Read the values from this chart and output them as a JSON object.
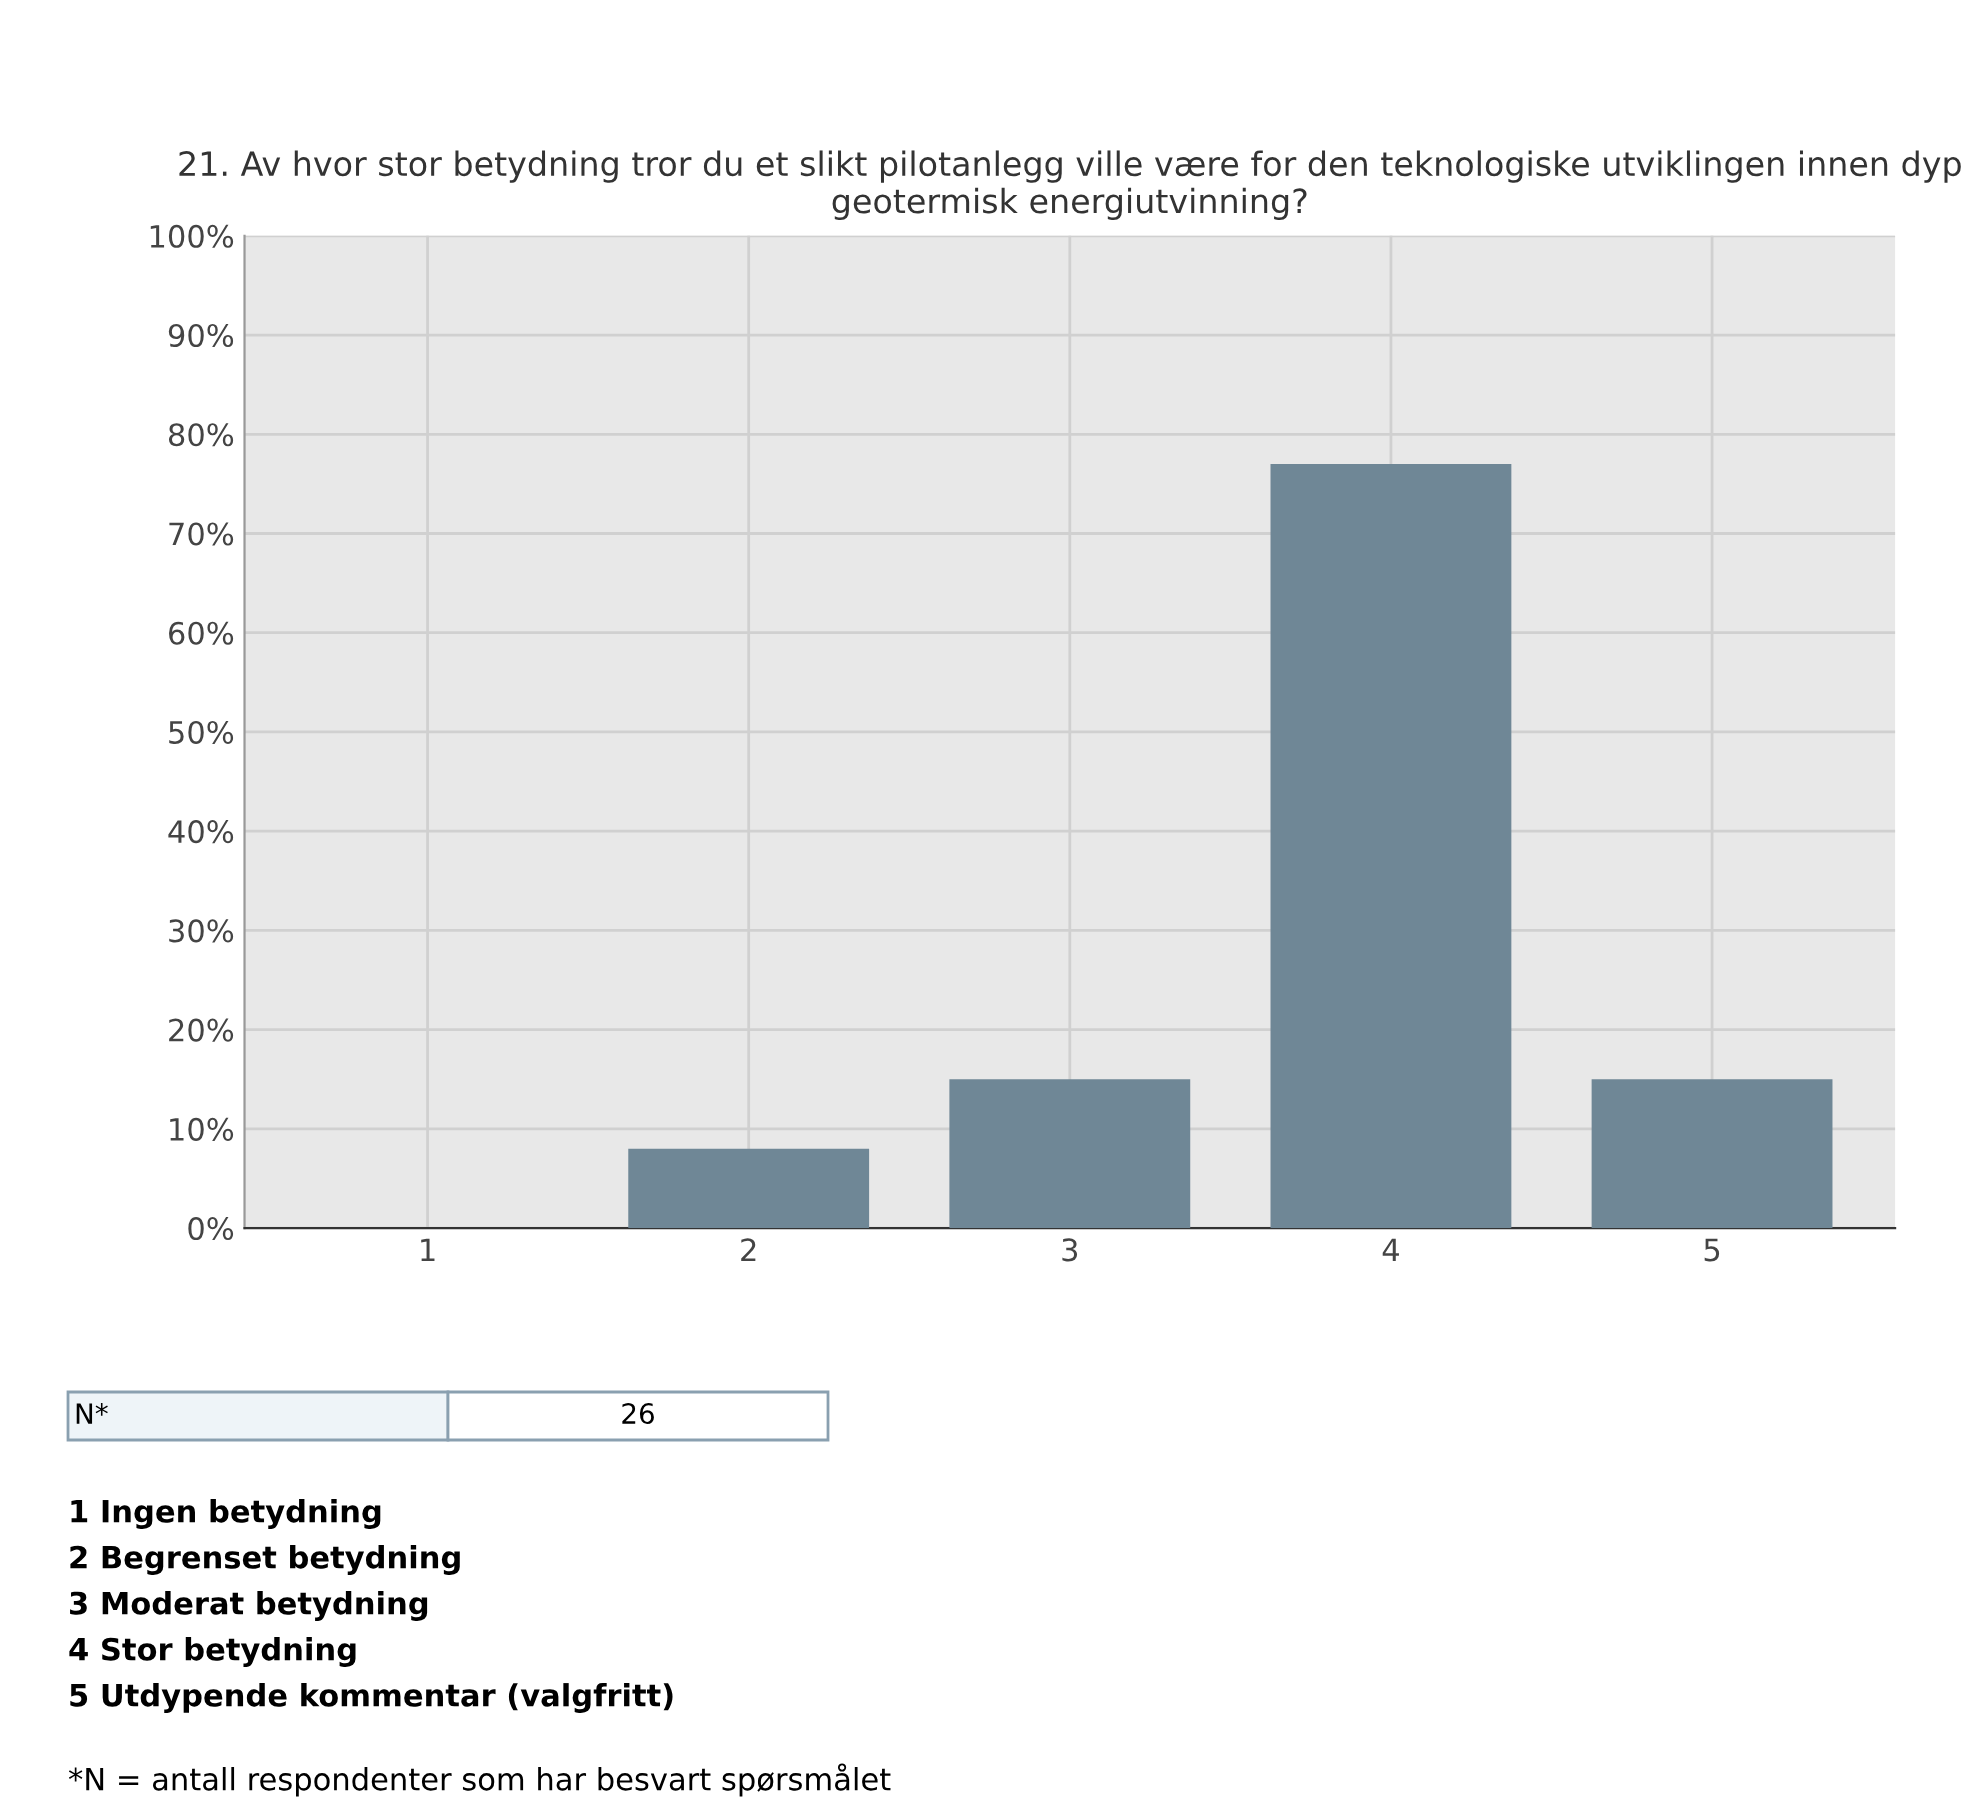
{
  "chart_data": {
    "type": "bar",
    "title": "21. Av hvor stor betydning tror du et slikt pilotanlegg ville være for den teknologiske utviklingen innen dyp geotermisk energiutvinning?",
    "categories": [
      "1",
      "2",
      "3",
      "4",
      "5"
    ],
    "values": [
      0,
      8,
      15,
      77,
      15
    ],
    "color": "#6f8796",
    "ylim": [
      0,
      100
    ],
    "yticks": [
      {
        "value": 0,
        "label": "0%"
      },
      {
        "value": 10,
        "label": "10%"
      },
      {
        "value": 20,
        "label": "20%"
      },
      {
        "value": 30,
        "label": "30%"
      },
      {
        "value": 40,
        "label": "40%"
      },
      {
        "value": 50,
        "label": "50%"
      },
      {
        "value": 60,
        "label": "60%"
      },
      {
        "value": 70,
        "label": "70%"
      },
      {
        "value": 80,
        "label": "80%"
      },
      {
        "value": 90,
        "label": "90%"
      },
      {
        "value": 100,
        "label": "100%"
      }
    ],
    "grid": true,
    "annotations": [
      "N*",
      "26",
      "1 Ingen betydning",
      "2 Begrenset betydning",
      "3 Moderat betydning",
      "4 Stor betydning",
      "5 Utdypende kommentar (valgfritt)",
      "*N = antall respondenter som har besvart spørsmålet"
    ]
  }
}
